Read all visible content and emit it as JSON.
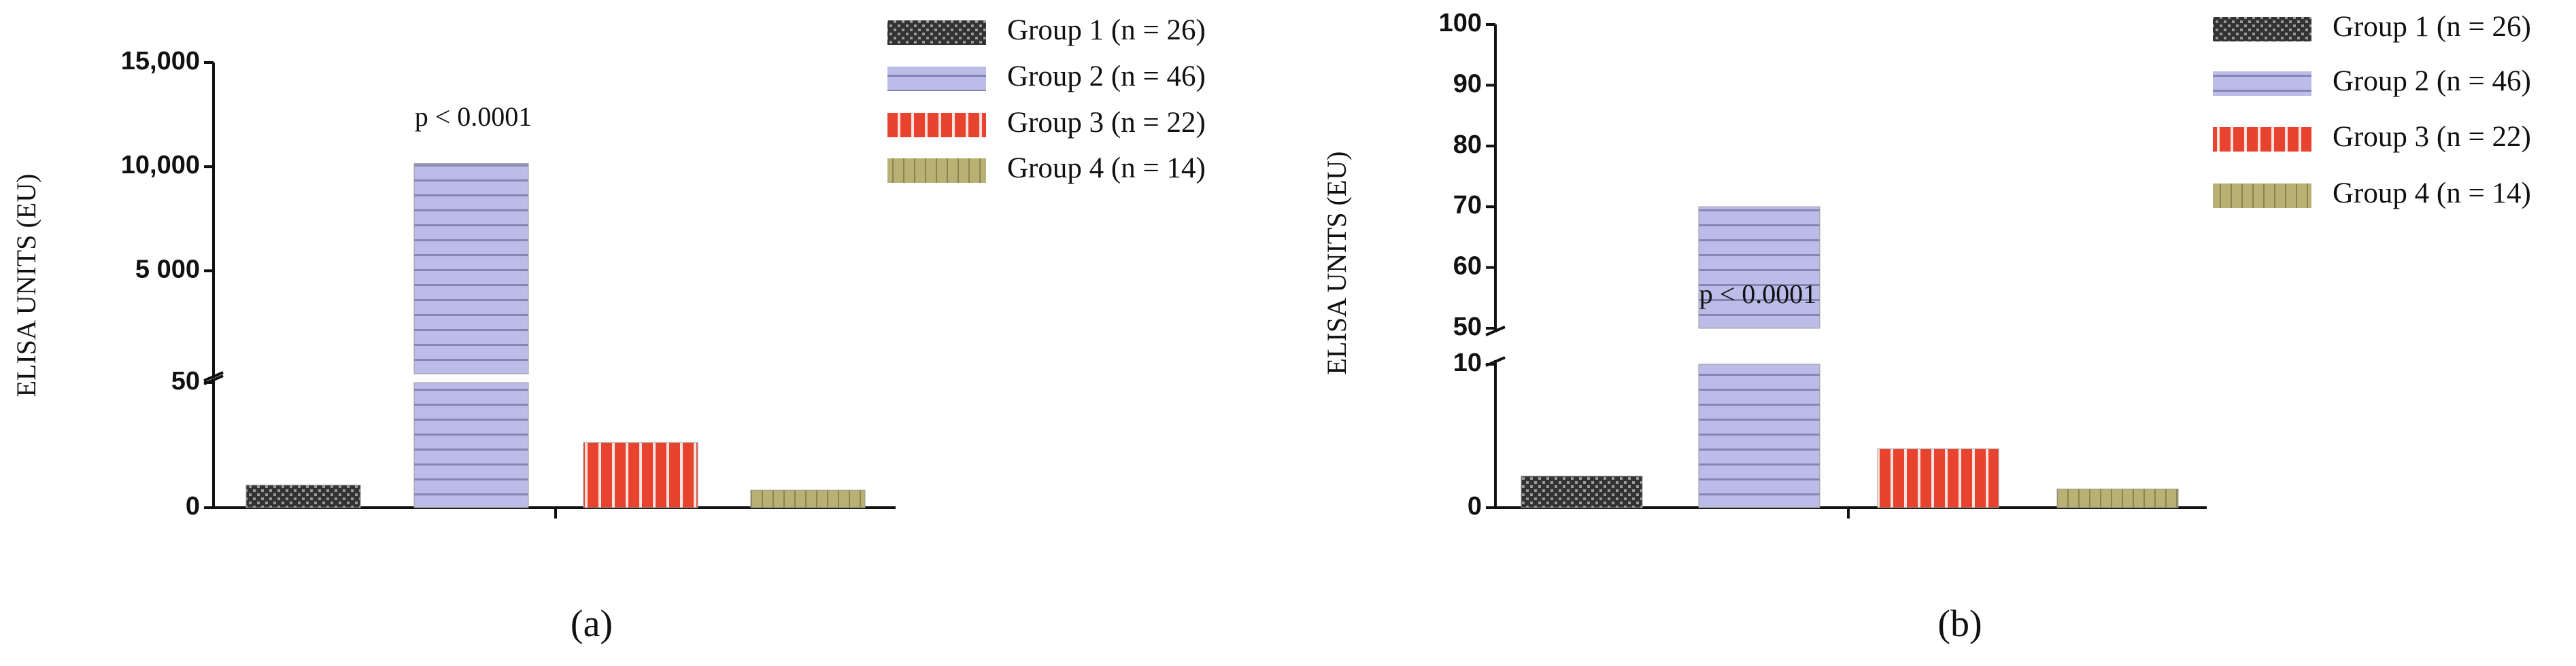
{
  "chart_data": [
    {
      "type": "bar",
      "label": "(a)",
      "y_label": "ELISA UNITS (EU)",
      "annotation": "p < 0.0001",
      "ylim": [
        0,
        15000
      ],
      "y_break": [
        50,
        50
      ],
      "yticks": [
        0,
        50,
        {
          "value": 5000,
          "label": "5 000"
        },
        {
          "value": 10000,
          "label": "10,000"
        },
        {
          "value": 15000,
          "label": "15,000"
        }
      ],
      "series": [
        {
          "name": "Group 1 (n = 26)",
          "color": "#333333",
          "values": [
            9
          ]
        },
        {
          "name": "Group 2 (n = 46)",
          "color": "#bcbce8",
          "values": [
            10150
          ]
        },
        {
          "name": "Group 3 (n = 22)",
          "color": "#e8432e",
          "values": [
            26
          ]
        },
        {
          "name": "Group 4 (n = 14)",
          "color": "#b9b174",
          "values": [
            7
          ]
        }
      ]
    },
    {
      "type": "bar",
      "label": "(b)",
      "y_label": "ELISA UNITS (EU)",
      "annotation": "p < 0.0001",
      "ylim": [
        0,
        100
      ],
      "y_break": [
        10,
        50
      ],
      "yticks": [
        0,
        10,
        50,
        60,
        70,
        80,
        90,
        100
      ],
      "series": [
        {
          "name": "Group 1 (n = 26)",
          "color": "#333333",
          "values": [
            2.2
          ]
        },
        {
          "name": "Group 2 (n = 46)",
          "color": "#bcbce8",
          "values": [
            70
          ]
        },
        {
          "name": "Group 3 (n = 22)",
          "color": "#e8432e",
          "values": [
            4.1
          ]
        },
        {
          "name": "Group 4 (n = 14)",
          "color": "#b9b174",
          "values": [
            1.3
          ]
        }
      ]
    }
  ]
}
